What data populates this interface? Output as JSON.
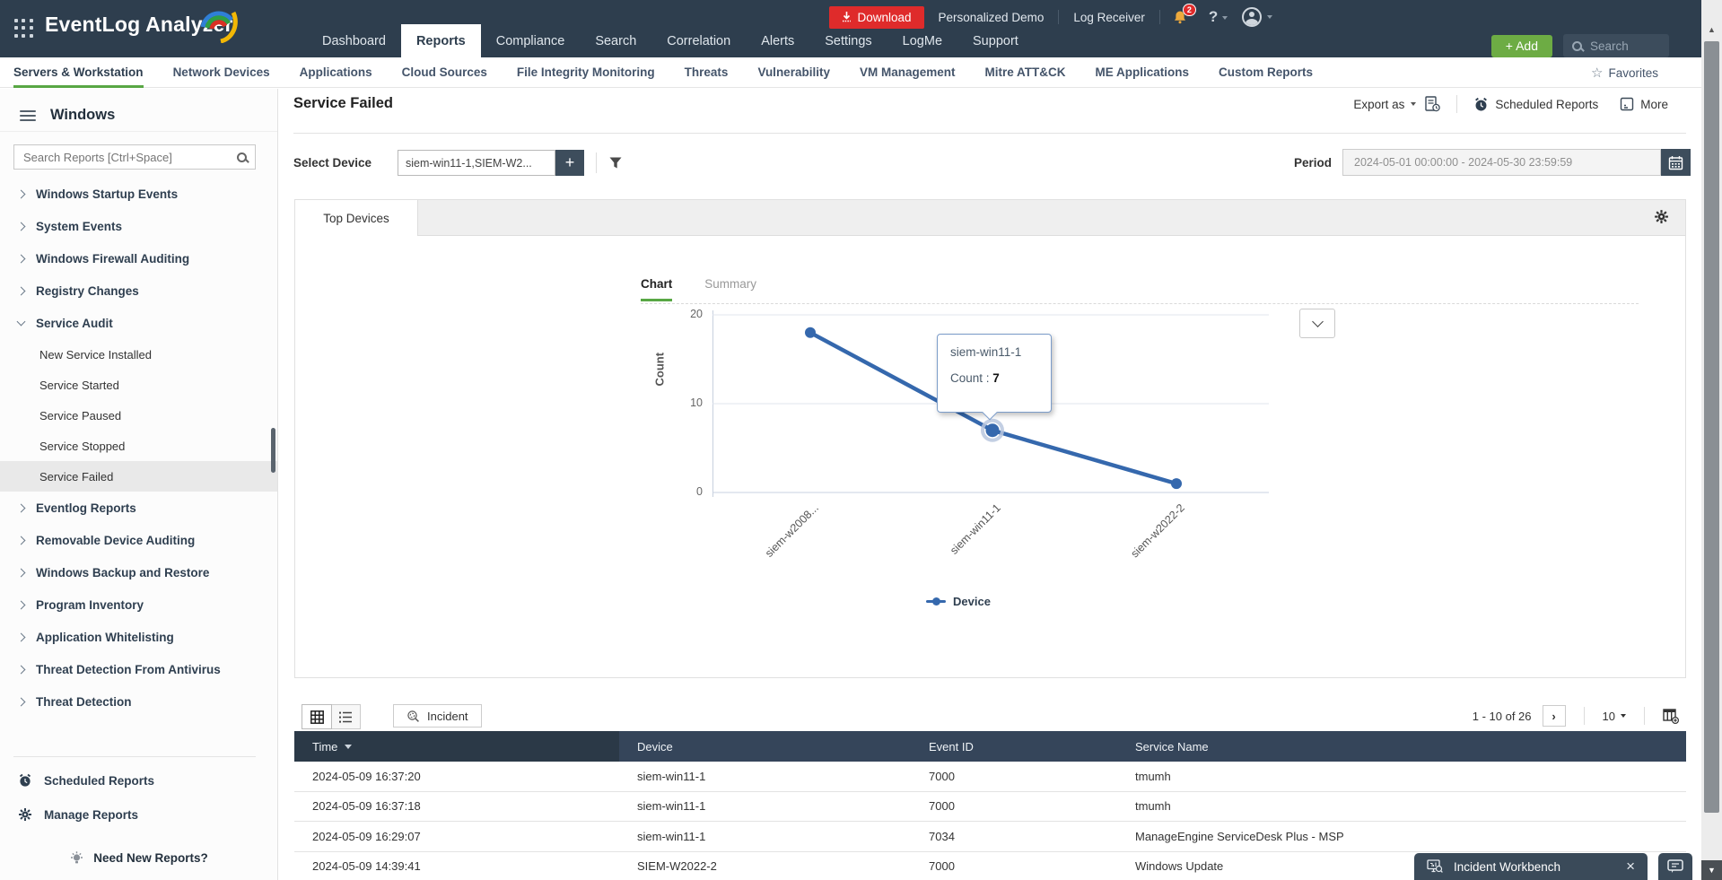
{
  "topbar": {
    "logo_text": "EventLog Analyzer",
    "nav_items": [
      "Dashboard",
      "Reports",
      "Compliance",
      "Search",
      "Correlation",
      "Alerts",
      "Settings",
      "LogMe",
      "Support"
    ],
    "active_tab": "Reports",
    "download_label": "Download",
    "demo_label": "Personalized Demo",
    "log_receiver_label": "Log Receiver",
    "notification_count": "2",
    "help_label": "?",
    "add_button_label": "+ Add",
    "search_label": "Search"
  },
  "subnav": {
    "items": [
      "Servers & Workstation",
      "Network Devices",
      "Applications",
      "Cloud Sources",
      "File Integrity Monitoring",
      "Threats",
      "Vulnerability",
      "VM Management",
      "Mitre ATT&CK",
      "ME Applications",
      "Custom Reports"
    ],
    "active": "Servers & Workstation",
    "favorites_label": "Favorites"
  },
  "sidebar": {
    "title": "Windows",
    "search_placeholder": "Search Reports [Ctrl+Space]",
    "groups_top": [
      "Windows Startup Events",
      "System Events",
      "Windows Firewall Auditing",
      "Registry Changes"
    ],
    "expanded_group": "Service Audit",
    "sub_items": [
      "New Service Installed",
      "Service Started",
      "Service Paused",
      "Service Stopped",
      "Service Failed"
    ],
    "selected_report": "Service Failed",
    "groups_bottom": [
      "Eventlog Reports",
      "Removable Device Auditing",
      "Windows Backup and Restore",
      "Program Inventory",
      "Application Whitelisting",
      "Threat Detection From Antivirus",
      "Threat Detection"
    ],
    "footer": {
      "scheduled": "Scheduled Reports",
      "manage": "Manage Reports",
      "need_new": "Need New Reports?"
    }
  },
  "report": {
    "title": "Service Failed",
    "export_label": "Export as",
    "scheduled_label": "Scheduled Reports",
    "more_label": "More"
  },
  "filters": {
    "select_device_label": "Select Device",
    "device_value": "siem-win11-1,SIEM-W2...",
    "period_label": "Period",
    "period_value": "2024-05-01 00:00:00 - 2024-05-30 23:59:59"
  },
  "panel": {
    "tab_label": "Top Devices",
    "chart_tab": "Chart",
    "summary_tab": "Summary"
  },
  "chart_data": {
    "type": "line",
    "title": "Top Devices",
    "categories": [
      "siem-w2008...",
      "siem-win11-1",
      "siem-w2022-2"
    ],
    "series": [
      {
        "name": "Device",
        "values": [
          18,
          7,
          1
        ]
      }
    ],
    "xlabel": "",
    "ylabel": "Count",
    "ylim": [
      0,
      20
    ],
    "yticks": [
      0,
      10,
      20
    ],
    "grid": true,
    "legend_position": "bottom",
    "line_color": "#3568ad",
    "tooltip": {
      "index": 1,
      "title": "siem-win11-1",
      "label": "Count : ",
      "value": "7"
    }
  },
  "table": {
    "incident_label": "Incident",
    "pagination": "1 - 10 of 26",
    "next_label": "›",
    "page_size": "10",
    "columns": [
      "Time",
      "Device",
      "Event ID",
      "Service Name"
    ],
    "rows": [
      [
        "2024-05-09 16:37:20",
        "siem-win11-1",
        "7000",
        "tmumh"
      ],
      [
        "2024-05-09 16:37:18",
        "siem-win11-1",
        "7000",
        "tmumh"
      ],
      [
        "2024-05-09 16:29:07",
        "siem-win11-1",
        "7034",
        "ManageEngine ServiceDesk Plus - MSP"
      ],
      [
        "2024-05-09 14:39:41",
        "SIEM-W2022-2",
        "7000",
        "Windows Update"
      ]
    ]
  },
  "workbench": {
    "label": "Incident Workbench",
    "close_label": "×"
  }
}
